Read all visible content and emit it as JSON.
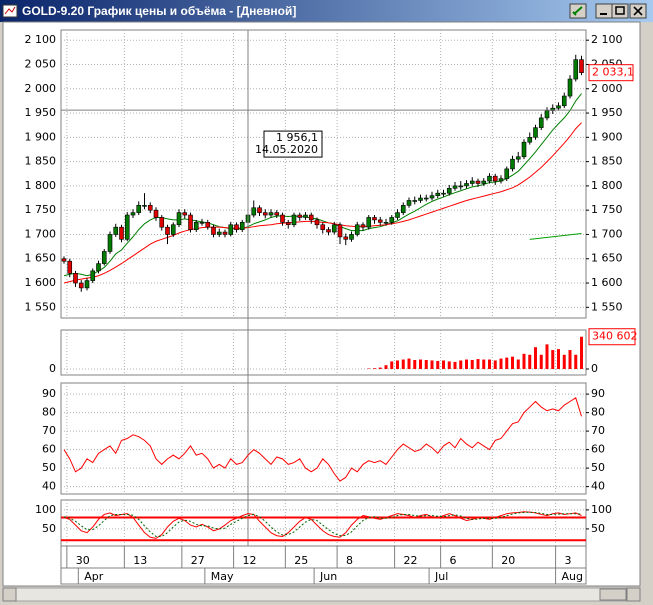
{
  "window": {
    "title": "GOLD-9.20 График цены и объёма - [Дневной]"
  },
  "chart_data": [
    {
      "type": "candlestick",
      "categories": [
        null,
        "30",
        null,
        null,
        null,
        null,
        null,
        null,
        null,
        null,
        null,
        "13",
        null,
        null,
        null,
        null,
        null,
        null,
        null,
        null,
        null,
        "27",
        null,
        null,
        null,
        null,
        null,
        null,
        null,
        null,
        "12",
        null,
        null,
        null,
        null,
        null,
        null,
        null,
        null,
        "25",
        null,
        null,
        null,
        null,
        null,
        null,
        null,
        null,
        "8",
        null,
        null,
        null,
        null,
        null,
        null,
        null,
        null,
        null,
        "22",
        null,
        null,
        null,
        null,
        null,
        null,
        null,
        "6",
        null,
        null,
        null,
        null,
        null,
        null,
        null,
        null,
        "20",
        null,
        null,
        null,
        null,
        null,
        null,
        null,
        null,
        null,
        null,
        "3",
        null,
        null,
        null,
        null
      ],
      "month_categories": [
        null,
        null,
        null,
        "Apr",
        null,
        null,
        null,
        null,
        null,
        null,
        null,
        null,
        null,
        null,
        null,
        null,
        null,
        null,
        null,
        null,
        null,
        null,
        null,
        null,
        null,
        "May",
        null,
        null,
        null,
        null,
        null,
        null,
        null,
        null,
        null,
        null,
        null,
        null,
        null,
        null,
        null,
        null,
        null,
        null,
        "Jun",
        null,
        null,
        null,
        null,
        null,
        null,
        null,
        null,
        null,
        null,
        null,
        null,
        null,
        null,
        null,
        null,
        null,
        null,
        null,
        "Jul",
        null,
        null,
        null,
        null,
        null,
        null,
        null,
        null,
        null,
        null,
        null,
        null,
        null,
        null,
        null,
        null,
        null,
        null,
        null,
        null,
        null,
        "Aug",
        null,
        null,
        null,
        null
      ],
      "open": [
        1650,
        1645,
        1620,
        1600,
        1590,
        1605,
        1625,
        1640,
        1665,
        1700,
        1715,
        1690,
        1740,
        1745,
        1760,
        1760,
        1750,
        1735,
        1715,
        1700,
        1720,
        1745,
        1740,
        1710,
        1725,
        1725,
        1715,
        1700,
        1705,
        1700,
        1720,
        1710,
        1725,
        1740,
        1755,
        1745,
        1740,
        1745,
        1740,
        1725,
        1720,
        1740,
        1735,
        1740,
        1730,
        1720,
        1710,
        1705,
        1720,
        1695,
        1690,
        1700,
        1720,
        1715,
        1735,
        1730,
        1725,
        1725,
        1735,
        1745,
        1760,
        1770,
        1770,
        1775,
        1775,
        1780,
        1785,
        1785,
        1795,
        1800,
        1800,
        1805,
        1810,
        1805,
        1810,
        1820,
        1810,
        1815,
        1835,
        1855,
        1860,
        1890,
        1900,
        1920,
        1940,
        1955,
        1960,
        1965,
        1985,
        2020,
        2060
      ],
      "high": [
        1655,
        1650,
        1625,
        1606,
        1610,
        1630,
        1646,
        1670,
        1706,
        1722,
        1720,
        1746,
        1752,
        1768,
        1785,
        1766,
        1756,
        1740,
        1720,
        1725,
        1752,
        1752,
        1745,
        1730,
        1732,
        1730,
        1720,
        1712,
        1710,
        1726,
        1725,
        1730,
        1746,
        1770,
        1760,
        1752,
        1752,
        1750,
        1745,
        1730,
        1745,
        1745,
        1746,
        1745,
        1735,
        1725,
        1715,
        1726,
        1725,
        1702,
        1706,
        1726,
        1725,
        1740,
        1740,
        1736,
        1732,
        1740,
        1752,
        1766,
        1776,
        1778,
        1782,
        1782,
        1788,
        1792,
        1792,
        1802,
        1808,
        1810,
        1812,
        1818,
        1815,
        1816,
        1826,
        1825,
        1822,
        1840,
        1862,
        1870,
        1896,
        1910,
        1926,
        1948,
        1962,
        1968,
        1972,
        1992,
        2028,
        2070,
        2068
      ],
      "low": [
        1640,
        1612,
        1592,
        1582,
        1585,
        1600,
        1620,
        1636,
        1660,
        1695,
        1684,
        1686,
        1734,
        1740,
        1752,
        1744,
        1728,
        1708,
        1680,
        1695,
        1715,
        1733,
        1704,
        1705,
        1718,
        1710,
        1694,
        1695,
        1694,
        1696,
        1704,
        1705,
        1720,
        1735,
        1738,
        1733,
        1735,
        1734,
        1718,
        1712,
        1715,
        1728,
        1730,
        1722,
        1712,
        1702,
        1698,
        1700,
        1680,
        1678,
        1685,
        1696,
        1708,
        1710,
        1722,
        1718,
        1718,
        1720,
        1730,
        1740,
        1755,
        1762,
        1765,
        1768,
        1770,
        1775,
        1778,
        1780,
        1790,
        1792,
        1795,
        1800,
        1798,
        1800,
        1805,
        1802,
        1805,
        1810,
        1830,
        1848,
        1855,
        1885,
        1895,
        1915,
        1935,
        1948,
        1955,
        1960,
        1980,
        2015,
        2028
      ],
      "close": [
        1645,
        1620,
        1600,
        1590,
        1605,
        1625,
        1640,
        1665,
        1700,
        1715,
        1690,
        1740,
        1745,
        1760,
        1760,
        1750,
        1735,
        1715,
        1700,
        1720,
        1745,
        1740,
        1710,
        1725,
        1725,
        1715,
        1700,
        1705,
        1700,
        1720,
        1710,
        1725,
        1740,
        1755,
        1745,
        1740,
        1745,
        1740,
        1725,
        1720,
        1740,
        1735,
        1740,
        1730,
        1720,
        1710,
        1705,
        1720,
        1695,
        1690,
        1700,
        1720,
        1715,
        1735,
        1730,
        1725,
        1725,
        1735,
        1745,
        1760,
        1770,
        1770,
        1775,
        1775,
        1780,
        1785,
        1785,
        1795,
        1800,
        1800,
        1805,
        1810,
        1805,
        1810,
        1820,
        1810,
        1815,
        1835,
        1855,
        1860,
        1890,
        1900,
        1920,
        1940,
        1955,
        1960,
        1965,
        1985,
        2020,
        2060,
        2033.1
      ],
      "up_color": "#007a00",
      "down_color": "#e00000",
      "series": [
        {
          "color": "#008000",
          "values": [
            1615,
            1618,
            1620,
            1618,
            1615,
            1618,
            1625,
            1632,
            1645,
            1660,
            1668,
            1682,
            1695,
            1710,
            1722,
            1730,
            1735,
            1735,
            1732,
            1730,
            1730,
            1732,
            1730,
            1728,
            1726,
            1724,
            1720,
            1716,
            1714,
            1712,
            1711,
            1712,
            1716,
            1722,
            1726,
            1730,
            1735,
            1738,
            1738,
            1737,
            1738,
            1737,
            1736,
            1734,
            1732,
            1728,
            1724,
            1722,
            1716,
            1712,
            1708,
            1708,
            1708,
            1712,
            1714,
            1716,
            1720,
            1724,
            1728,
            1735,
            1742,
            1748,
            1755,
            1762,
            1768,
            1773,
            1777,
            1782,
            1786,
            1790,
            1794,
            1798,
            1800,
            1803,
            1807,
            1808,
            1810,
            1815,
            1822,
            1830,
            1843,
            1856,
            1870,
            1885,
            1900,
            1915,
            1928,
            1940,
            1955,
            1975,
            1990
          ]
        },
        {
          "color": "#ff0000",
          "values": [
            1600,
            1603,
            1606,
            1608,
            1610,
            1612,
            1615,
            1620,
            1626,
            1633,
            1640,
            1648,
            1656,
            1664,
            1672,
            1680,
            1686,
            1690,
            1694,
            1698,
            1703,
            1707,
            1710,
            1712,
            1714,
            1715,
            1715,
            1715,
            1714,
            1713,
            1713,
            1713,
            1714,
            1716,
            1718,
            1719,
            1720,
            1722,
            1723,
            1724,
            1725,
            1726,
            1727,
            1727,
            1726,
            1725,
            1724,
            1722,
            1720,
            1718,
            1717,
            1716,
            1716,
            1717,
            1718,
            1719,
            1720,
            1722,
            1724,
            1727,
            1730,
            1734,
            1738,
            1742,
            1746,
            1750,
            1754,
            1758,
            1762,
            1766,
            1770,
            1773,
            1776,
            1779,
            1782,
            1785,
            1788,
            1792,
            1796,
            1802,
            1810,
            1818,
            1828,
            1838,
            1850,
            1862,
            1875,
            1888,
            1902,
            1918,
            1930
          ]
        }
      ],
      "ylim": [
        1528,
        2121
      ],
      "yticks": [
        {
          "value": 2100,
          "label": "2 100"
        },
        {
          "value": 2050,
          "label": "2 050"
        },
        {
          "value": 2000,
          "label": "2 000"
        },
        {
          "value": 1950,
          "label": "1 950"
        },
        {
          "value": 1900,
          "label": "1 900"
        },
        {
          "value": 1850,
          "label": "1 850"
        },
        {
          "value": 1800,
          "label": "1 800"
        },
        {
          "value": 1750,
          "label": "1 750"
        },
        {
          "value": 1700,
          "label": "1 700"
        },
        {
          "value": 1650,
          "label": "1 650"
        },
        {
          "value": 1600,
          "label": "1 600"
        },
        {
          "value": 1550,
          "label": "1 550"
        }
      ],
      "grid": true,
      "last_price": {
        "value": 2033.1,
        "label": "2 033,1"
      },
      "cursor": {
        "value": 1956.1,
        "label": "1 956,1",
        "date": "14.05.2020",
        "index": 32
      },
      "trendline": {
        "x": [
          81,
          90
        ],
        "y": [
          1690,
          1702
        ],
        "color": "#00a000"
      }
    },
    {
      "type": "bar",
      "values": [
        0,
        0,
        0,
        0,
        0,
        0,
        0,
        0,
        0,
        0,
        0,
        0,
        0,
        0,
        0,
        0,
        0,
        0,
        0,
        0,
        0,
        0,
        0,
        0,
        0,
        0,
        0,
        0,
        0,
        0,
        0,
        0,
        0,
        0,
        0,
        0,
        0,
        0,
        0,
        0,
        0,
        0,
        0,
        0,
        0,
        0,
        0,
        0,
        0,
        0,
        0,
        0,
        0,
        5000,
        8000,
        15000,
        40000,
        80000,
        90000,
        100000,
        110000,
        95000,
        100000,
        95000,
        90000,
        85000,
        90000,
        80000,
        75000,
        90000,
        100000,
        95000,
        105000,
        100000,
        100000,
        90000,
        110000,
        120000,
        130000,
        100000,
        160000,
        150000,
        230000,
        150000,
        260000,
        200000,
        210000,
        150000,
        200000,
        150000,
        340602
      ],
      "color": "#ff0000",
      "ylim": [
        0,
        380000
      ],
      "yticks": [
        0
      ],
      "grid": true,
      "last_value_label": {
        "value": 340602,
        "label": "340 602"
      }
    },
    {
      "type": "line",
      "series": [
        {
          "color": "#ff0000",
          "values": [
            60,
            55,
            48,
            50,
            55,
            53,
            58,
            60,
            62,
            58,
            65,
            66,
            68,
            67,
            65,
            62,
            55,
            52,
            55,
            57,
            55,
            58,
            62,
            57,
            58,
            55,
            50,
            52,
            50,
            55,
            52,
            53,
            57,
            60,
            58,
            55,
            52,
            56,
            55,
            52,
            53,
            55,
            50,
            48,
            50,
            55,
            52,
            47,
            43,
            45,
            50,
            48,
            52,
            54,
            53,
            54,
            52,
            56,
            60,
            63,
            61,
            59,
            60,
            63,
            61,
            58,
            62,
            64,
            61,
            66,
            63,
            61,
            64,
            62,
            60,
            65,
            66,
            70,
            74,
            75,
            80,
            83,
            86,
            83,
            81,
            82,
            81,
            84,
            86,
            88,
            78
          ]
        }
      ],
      "ylim": [
        36,
        96
      ],
      "yticks": [
        90,
        80,
        70,
        60,
        50,
        40
      ],
      "grid": true
    },
    {
      "type": "line",
      "series": [
        {
          "color": "#ff0000",
          "values": [
            80,
            75,
            60,
            45,
            40,
            55,
            75,
            88,
            92,
            85,
            88,
            90,
            80,
            60,
            40,
            28,
            25,
            35,
            55,
            70,
            78,
            72,
            60,
            55,
            62,
            55,
            45,
            50,
            60,
            72,
            78,
            85,
            90,
            88,
            70,
            55,
            40,
            32,
            30,
            40,
            55,
            70,
            80,
            75,
            60,
            45,
            35,
            30,
            28,
            40,
            60,
            75,
            85,
            82,
            78,
            75,
            80,
            85,
            90,
            88,
            85,
            80,
            85,
            88,
            82,
            80,
            85,
            90,
            85,
            78,
            72,
            75,
            80,
            78,
            75,
            80,
            85,
            90,
            92,
            93,
            95,
            94,
            92,
            88,
            85,
            90,
            92,
            88,
            90,
            92,
            85
          ]
        },
        {
          "color": "#006400",
          "dash": true,
          "values": [
            82,
            78,
            70,
            58,
            48,
            48,
            58,
            72,
            85,
            88,
            88,
            88,
            86,
            75,
            58,
            42,
            30,
            30,
            40,
            55,
            68,
            73,
            70,
            62,
            58,
            58,
            52,
            50,
            52,
            62,
            70,
            78,
            85,
            88,
            82,
            70,
            55,
            42,
            34,
            35,
            42,
            55,
            68,
            75,
            72,
            60,
            48,
            38,
            32,
            33,
            42,
            58,
            72,
            80,
            82,
            78,
            78,
            80,
            85,
            88,
            88,
            85,
            83,
            85,
            85,
            83,
            82,
            85,
            87,
            84,
            78,
            75,
            76,
            78,
            78,
            78,
            80,
            85,
            89,
            92,
            93,
            94,
            93,
            91,
            88,
            88,
            89,
            90,
            90,
            90,
            89
          ]
        }
      ],
      "levels": [
        80,
        20
      ],
      "level_color": "#ff0000",
      "ylim": [
        5,
        126
      ],
      "yticks": [
        100,
        50
      ],
      "grid": true
    }
  ]
}
